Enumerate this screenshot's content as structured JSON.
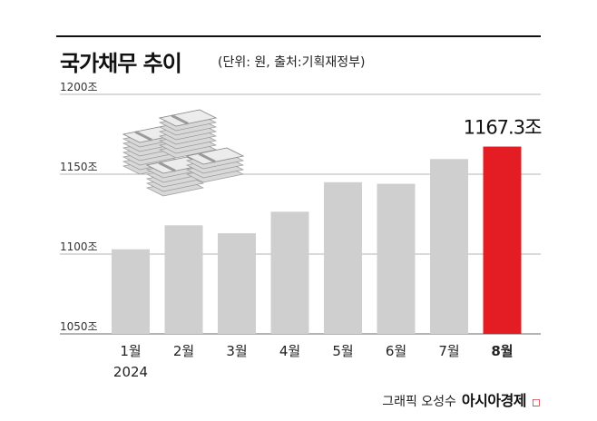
{
  "chart_data": {
    "type": "bar",
    "title": "국가채무 추이",
    "subtitle": "(단위: 원, 출처:기획재정부)",
    "categories": [
      "1월",
      "2월",
      "3월",
      "4월",
      "5월",
      "6월",
      "7월",
      "8월"
    ],
    "year_label": "2024",
    "values": [
      1103.0,
      1118.0,
      1113.0,
      1126.5,
      1145.0,
      1144.0,
      1159.5,
      1167.3
    ],
    "highlight_index": 7,
    "highlight_label": "1167.3조",
    "ylim": [
      1050,
      1200
    ],
    "y_ticks": [
      1050,
      1100,
      1150,
      1200
    ],
    "y_tick_labels": [
      "1050조",
      "1100조",
      "1150조",
      "1200조"
    ],
    "grid": true,
    "colors": {
      "bar": "#cfcfcf",
      "highlight": "#e41c24",
      "grid": "#b5b5b5"
    }
  },
  "footer": {
    "credit": "그래픽 오성수",
    "brand": "아시아경제"
  }
}
